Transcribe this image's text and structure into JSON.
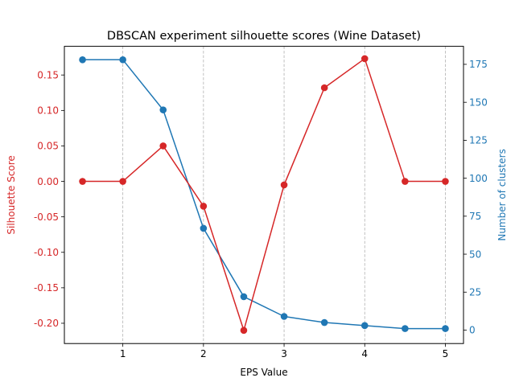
{
  "chart_data": {
    "type": "line",
    "title": "DBSCAN experiment silhouette scores (Wine Dataset)",
    "xlabel": "EPS Value",
    "ylabel_left": "Silhouette Score",
    "ylabel_right": "Number of clusters",
    "xlim": [
      0.275,
      5.225
    ],
    "ylim_left": [
      -0.2286,
      0.1904
    ],
    "ylim_right": [
      -8.85,
      186.85
    ],
    "x_ticks": [
      1,
      2,
      3,
      4,
      5
    ],
    "y_ticks_left": [
      -0.2,
      -0.15,
      -0.1,
      -0.05,
      0.0,
      0.05,
      0.1,
      0.15
    ],
    "y_ticks_right": [
      0,
      25,
      50,
      75,
      100,
      125,
      150,
      175
    ],
    "grid": "vertical dashed at x ticks",
    "x": [
      0.5,
      1.0,
      1.5,
      2.0,
      2.5,
      3.0,
      3.5,
      4.0,
      4.5,
      5.0
    ],
    "series": [
      {
        "axis": "left",
        "color": "#d62728",
        "values": [
          0.0,
          0.0,
          0.05,
          -0.035,
          -0.21,
          -0.005,
          0.132,
          0.173,
          0.0,
          0.0
        ]
      },
      {
        "axis": "right",
        "color": "#1f77b4",
        "values": [
          178,
          178,
          145,
          67,
          22,
          9,
          5,
          3,
          1,
          1
        ]
      }
    ]
  }
}
